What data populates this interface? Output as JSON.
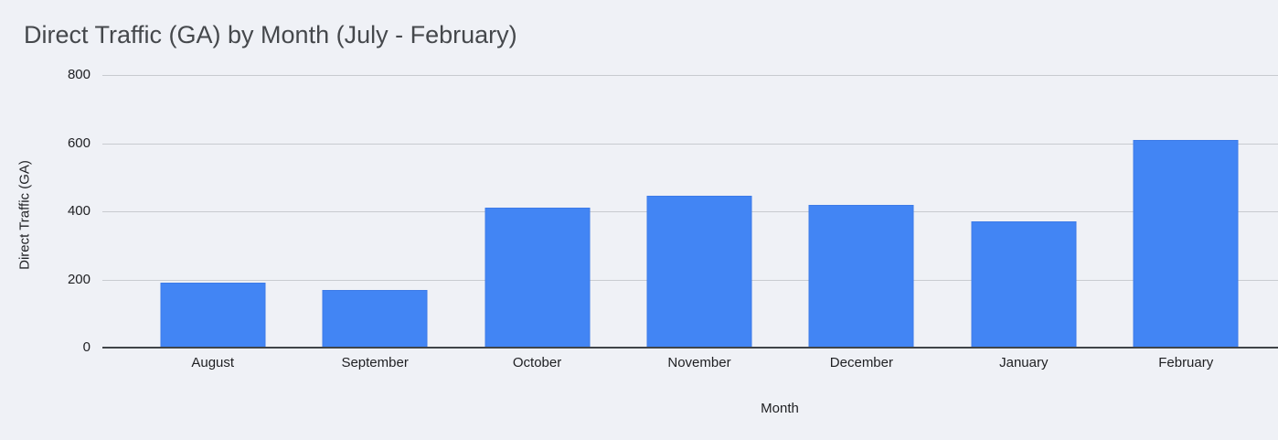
{
  "window": {
    "background": "#eff1f6"
  },
  "chart_data": {
    "type": "bar",
    "title": "Direct Traffic (GA) by Month (July - February)",
    "xlabel": "Month",
    "ylabel": "Direct Traffic (GA)",
    "categories": [
      "August",
      "September",
      "October",
      "November",
      "December",
      "January",
      "February"
    ],
    "values": [
      190,
      170,
      410,
      445,
      420,
      370,
      610
    ],
    "ylim": [
      0,
      800
    ],
    "yticks": [
      0,
      200,
      400,
      600,
      800
    ],
    "grid": true,
    "legend_position": "none",
    "colors": {
      "bar_fill": "#4285f4",
      "bar_edge": "#3d7be8",
      "gridline": "#c8cbd0",
      "axis_line": "#404448",
      "title_text": "#45484c",
      "tick_text": "#1e1f22",
      "background": "#eff1f6"
    }
  }
}
